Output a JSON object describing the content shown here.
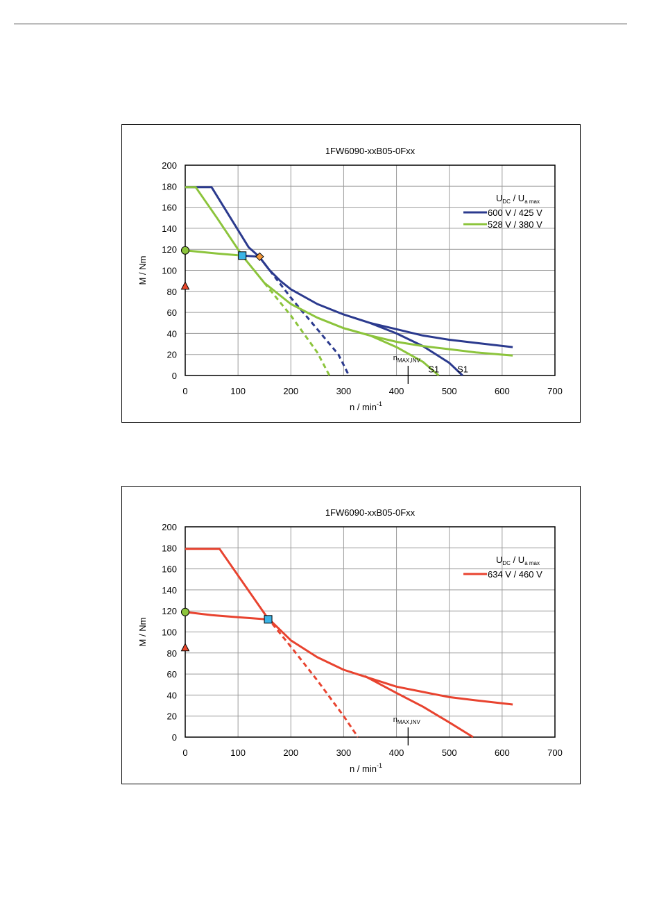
{
  "chart_data": [
    {
      "type": "line",
      "title": "1FW6090-xxB05-0Fxx",
      "xlabel": "n / min",
      "xlabel_sup": "-1",
      "ylabel": "M / Nm",
      "xlim": [
        0,
        700
      ],
      "ylim": [
        0,
        200
      ],
      "xticks": [
        0,
        100,
        200,
        300,
        400,
        500,
        600,
        700
      ],
      "yticks": [
        0,
        20,
        40,
        60,
        80,
        100,
        120,
        140,
        160,
        180,
        200
      ],
      "grid": true,
      "legend": {
        "placement": "top-right",
        "header_u": "U",
        "header_u_sub": "DC",
        "header_sep": "/",
        "header_ua": "U",
        "header_ua_sub": "a max"
      },
      "series": [
        {
          "name": "600 V / 425 V",
          "color": "#2b3a8e",
          "in_legend": true,
          "curves": [
            {
              "style": "solid",
              "points": [
                [
                  0,
                  179
                ],
                [
                  50,
                  179
                ],
                [
                  120,
                  122
                ],
                [
                  140,
                  113
                ],
                [
                  160,
                  100
                ],
                [
                  180,
                  90
                ],
                [
                  200,
                  82
                ],
                [
                  250,
                  68
                ],
                [
                  300,
                  58
                ],
                [
                  350,
                  50
                ],
                [
                  400,
                  44
                ],
                [
                  450,
                  38
                ],
                [
                  500,
                  34
                ],
                [
                  550,
                  31
                ],
                [
                  620,
                  27
                ]
              ]
            },
            {
              "style": "solid",
              "points": [
                [
                  350,
                  50
                ],
                [
                  400,
                  40
                ],
                [
                  450,
                  28
                ],
                [
                  500,
                  12
                ],
                [
                  525,
                  0
                ]
              ]
            },
            {
              "style": "dashed",
              "points": [
                [
                  160,
                  100
                ],
                [
                  200,
                  74
                ],
                [
                  250,
                  44
                ],
                [
                  290,
                  20
                ],
                [
                  310,
                  0
                ]
              ]
            }
          ]
        },
        {
          "name": "528 V / 380 V",
          "color": "#8cc43c",
          "in_legend": true,
          "curves": [
            {
              "style": "solid",
              "points": [
                [
                  0,
                  179
                ],
                [
                  20,
                  179
                ],
                [
                  60,
                  150
                ],
                [
                  100,
                  120
                ],
                [
                  108,
                  114
                ],
                [
                  150,
                  88
                ],
                [
                  200,
                  68
                ],
                [
                  250,
                  55
                ],
                [
                  300,
                  45
                ],
                [
                  350,
                  38
                ],
                [
                  400,
                  32
                ],
                [
                  450,
                  28
                ],
                [
                  500,
                  25
                ],
                [
                  550,
                  22
                ],
                [
                  620,
                  19
                ]
              ]
            },
            {
              "style": "solid",
              "points": [
                [
                  300,
                  45
                ],
                [
                  350,
                  38
                ],
                [
                  400,
                  27
                ],
                [
                  450,
                  13
                ],
                [
                  480,
                  0
                ]
              ]
            },
            {
              "style": "dashed",
              "points": [
                [
                  150,
                  88
                ],
                [
                  200,
                  57
                ],
                [
                  250,
                  22
                ],
                [
                  273,
                  0
                ]
              ]
            },
            {
              "style": "solid",
              "points": [
                [
                  0,
                  119
                ],
                [
                  20,
                  118
                ],
                [
                  60,
                  116
                ],
                [
                  108,
                  114
                ]
              ]
            }
          ]
        },
        {
          "name": "blue-partial-load",
          "color": "#2b3a8e",
          "in_legend": false,
          "curves": [
            {
              "style": "solid",
              "points": [
                [
                  108,
                  114
                ],
                [
                  140,
                  113
                ],
                [
                  160,
                  100
                ]
              ]
            }
          ]
        }
      ],
      "markers": [
        {
          "name": "circle",
          "x": 0,
          "y": 119,
          "shape": "circle",
          "fill": "#8cc43c"
        },
        {
          "name": "triangle",
          "x": 0,
          "y": 85,
          "shape": "triangle",
          "fill": "#e8472b"
        },
        {
          "name": "square",
          "x": 108,
          "y": 114,
          "shape": "square",
          "fill": "#3cb4e6"
        },
        {
          "name": "diamond",
          "x": 141,
          "y": 113,
          "shape": "diamond",
          "fill": "#f49a3c"
        }
      ],
      "annotations": [
        {
          "kind": "nmax",
          "x": 422,
          "label": "n",
          "label_sub": "MAX,INV"
        },
        {
          "kind": "text",
          "x": 460,
          "y": 3,
          "label": "S1"
        },
        {
          "kind": "text",
          "x": 515,
          "y": 3,
          "label": "S1"
        }
      ]
    },
    {
      "type": "line",
      "title": "1FW6090-xxB05-0Fxx",
      "xlabel": "n / min",
      "xlabel_sup": "-1",
      "ylabel": "M / Nm",
      "xlim": [
        0,
        700
      ],
      "ylim": [
        0,
        200
      ],
      "xticks": [
        0,
        100,
        200,
        300,
        400,
        500,
        600,
        700
      ],
      "yticks": [
        0,
        20,
        40,
        60,
        80,
        100,
        120,
        140,
        160,
        180,
        200
      ],
      "grid": true,
      "legend": {
        "placement": "top-right",
        "header_u": "U",
        "header_u_sub": "DC",
        "header_sep": "/",
        "header_ua": "U",
        "header_ua_sub": "a max"
      },
      "series": [
        {
          "name": "634 V / 460 V",
          "color": "#e8432f",
          "in_legend": true,
          "curves": [
            {
              "style": "solid",
              "points": [
                [
                  0,
                  179
                ],
                [
                  65,
                  179
                ],
                [
                  155,
                  114
                ],
                [
                  200,
                  92
                ],
                [
                  250,
                  76
                ],
                [
                  300,
                  64
                ],
                [
                  350,
                  56
                ],
                [
                  400,
                  48
                ],
                [
                  450,
                  43
                ],
                [
                  500,
                  38
                ],
                [
                  550,
                  35
                ],
                [
                  620,
                  31
                ]
              ]
            },
            {
              "style": "solid",
              "points": [
                [
                  340,
                  58
                ],
                [
                  400,
                  42
                ],
                [
                  450,
                  29
                ],
                [
                  500,
                  14
                ],
                [
                  545,
                  0
                ]
              ]
            },
            {
              "style": "dashed",
              "points": [
                [
                  155,
                  114
                ],
                [
                  200,
                  86
                ],
                [
                  250,
                  54
                ],
                [
                  300,
                  20
                ],
                [
                  327,
                  0
                ]
              ]
            },
            {
              "style": "solid",
              "points": [
                [
                  0,
                  119
                ],
                [
                  50,
                  116
                ],
                [
                  100,
                  114
                ],
                [
                  155,
                  112
                ]
              ]
            }
          ]
        }
      ],
      "markers": [
        {
          "name": "circle",
          "x": 0,
          "y": 119,
          "shape": "circle",
          "fill": "#8cc43c"
        },
        {
          "name": "triangle",
          "x": 0,
          "y": 85,
          "shape": "triangle",
          "fill": "#e8472b"
        },
        {
          "name": "square",
          "x": 157,
          "y": 112,
          "shape": "square",
          "fill": "#3cb4e6"
        }
      ],
      "annotations": [
        {
          "kind": "nmax",
          "x": 422,
          "label": "n",
          "label_sub": "MAX,INV"
        }
      ]
    }
  ]
}
